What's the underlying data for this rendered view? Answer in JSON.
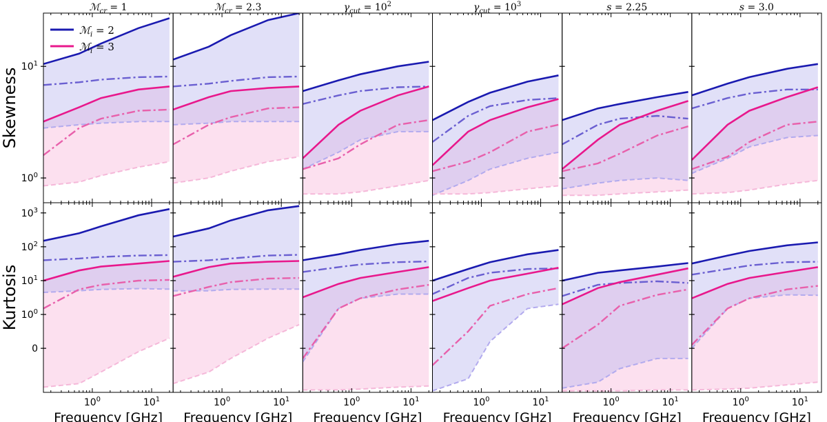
{
  "chart_data": {
    "type": "line",
    "layout": "2 rows x 6 columns of panels, shared axes",
    "xlabel": "Frequency [GHz]",
    "x_scale": "log",
    "xlim": [
      0.15,
      23
    ],
    "x_ticks": [
      {
        "value": 1,
        "label": "10^0"
      },
      {
        "value": 10,
        "label": "10^1"
      }
    ],
    "x": [
      0.15,
      0.6,
      1.4,
      6.0,
      20.0
    ],
    "rows": [
      {
        "name": "skewness",
        "ylabel": "Skewness",
        "y_scale": "log",
        "ylim": [
          0.6,
          30
        ],
        "y_ticks": [
          {
            "value": 1,
            "label": "10^0"
          },
          {
            "value": 10,
            "label": "10^1"
          }
        ]
      },
      {
        "name": "kurtosis",
        "ylabel": "Kurtosis",
        "y_scale": "symlog",
        "ylim": [
          -2,
          2000
        ],
        "y_ticks": [
          {
            "value": 0,
            "label": "0"
          },
          {
            "value": 1,
            "label": "10^0"
          },
          {
            "value": 10,
            "label": "10^1"
          },
          {
            "value": 100,
            "label": "10^2"
          },
          {
            "value": 1000,
            "label": "10^3"
          }
        ]
      }
    ],
    "columns": [
      {
        "sym": "ℳ",
        "sub": "cr",
        "sup": "",
        "value": "1"
      },
      {
        "sym": "ℳ",
        "sub": "cr",
        "sup": "",
        "value": "2.3"
      },
      {
        "sym": "γ",
        "sub": "cut",
        "sup": "2",
        "value": "10"
      },
      {
        "sym": "γ",
        "sub": "cut",
        "sup": "3",
        "value": "10"
      },
      {
        "sym": "s",
        "sub": "",
        "sup": "",
        "value": "2.25"
      },
      {
        "sym": "s",
        "sub": "",
        "sup": "",
        "value": "3.0"
      }
    ],
    "legend": {
      "location": "upper-left of first panel",
      "entries": [
        {
          "sym": "ℳ",
          "sub": "i",
          "value": "2",
          "color": "#1a1ab0"
        },
        {
          "sym": "ℳ",
          "sub": "i",
          "value": "3",
          "color": "#e8188c"
        }
      ]
    },
    "styles": {
      "blue_solid": "#1a1ab0",
      "blue_dashdot": "#6a5fd1",
      "blue_dashed": "#b2aaee",
      "blue_fill": "#e2e1f7",
      "pink_solid": "#e8188c",
      "pink_dashdot": "#e860ab",
      "pink_dashed": "#f5b8d9",
      "pink_fill": "#fce1ef",
      "overlap_fill": "#e6d5f0"
    },
    "series_note": "Each group: upper (solid), median (dash-dot), lower (dashed); shaded band between upper and lower",
    "panels": [
      {
        "row": 0,
        "col": 0,
        "groups": [
          {
            "name": "M_i=2",
            "upper": [
              10.5,
              13,
              16,
              22,
              27
            ],
            "mid": [
              6.8,
              7.2,
              7.6,
              8.0,
              8.1
            ],
            "lower": [
              2.8,
              3.0,
              3.1,
              3.2,
              3.2
            ]
          },
          {
            "name": "M_i=3",
            "upper": [
              3.2,
              4.3,
              5.2,
              6.2,
              6.6
            ],
            "mid": [
              1.6,
              2.8,
              3.4,
              4.0,
              4.1
            ],
            "lower": [
              0.85,
              0.92,
              1.05,
              1.25,
              1.4
            ]
          }
        ]
      },
      {
        "row": 0,
        "col": 1,
        "groups": [
          {
            "name": "M_i=2",
            "upper": [
              11.5,
              15,
              19,
              26,
              30
            ],
            "mid": [
              6.6,
              7.0,
              7.4,
              8.0,
              8.1
            ],
            "lower": [
              3.0,
              3.1,
              3.2,
              3.2,
              3.2
            ]
          },
          {
            "name": "M_i=3",
            "upper": [
              4.1,
              5.3,
              6.0,
              6.4,
              6.6
            ],
            "mid": [
              2.0,
              3.0,
              3.5,
              4.2,
              4.3
            ],
            "lower": [
              0.9,
              1.0,
              1.15,
              1.4,
              1.55
            ]
          }
        ]
      },
      {
        "row": 0,
        "col": 2,
        "groups": [
          {
            "name": "M_i=2",
            "upper": [
              6.0,
              7.5,
              8.5,
              10,
              11
            ],
            "mid": [
              4.6,
              5.5,
              6.0,
              6.5,
              6.6
            ],
            "lower": [
              1.2,
              1.7,
              2.2,
              2.6,
              2.6
            ]
          },
          {
            "name": "M_i=3",
            "upper": [
              1.5,
              3.0,
              4.0,
              5.5,
              6.6
            ],
            "mid": [
              1.2,
              1.5,
              2.0,
              3.0,
              3.3
            ],
            "lower": [
              0.72,
              0.72,
              0.75,
              0.85,
              0.95
            ]
          }
        ]
      },
      {
        "row": 0,
        "col": 3,
        "groups": [
          {
            "name": "M_i=2",
            "upper": [
              3.3,
              4.8,
              5.8,
              7.3,
              8.3
            ],
            "mid": [
              2.1,
              3.6,
              4.4,
              5.0,
              5.2
            ],
            "lower": [
              0.7,
              0.95,
              1.2,
              1.5,
              1.7
            ]
          },
          {
            "name": "M_i=3",
            "upper": [
              1.3,
              2.6,
              3.3,
              4.3,
              5.1
            ],
            "mid": [
              1.15,
              1.4,
              1.7,
              2.6,
              3.0
            ],
            "lower": [
              0.72,
              0.72,
              0.74,
              0.8,
              0.85
            ]
          }
        ]
      },
      {
        "row": 0,
        "col": 4,
        "groups": [
          {
            "name": "M_i=2",
            "upper": [
              3.3,
              4.2,
              4.6,
              5.3,
              5.9
            ],
            "mid": [
              2.0,
              3.0,
              3.4,
              3.6,
              3.4
            ],
            "lower": [
              0.8,
              0.9,
              0.95,
              1.0,
              0.95
            ]
          },
          {
            "name": "M_i=3",
            "upper": [
              1.2,
              2.2,
              3.0,
              4.0,
              4.9
            ],
            "mid": [
              1.15,
              1.35,
              1.65,
              2.4,
              2.9
            ],
            "lower": [
              0.7,
              0.7,
              0.72,
              0.75,
              0.78
            ]
          }
        ]
      },
      {
        "row": 0,
        "col": 5,
        "groups": [
          {
            "name": "M_i=2",
            "upper": [
              5.5,
              7.0,
              8.0,
              9.5,
              10.5
            ],
            "mid": [
              4.2,
              5.2,
              5.7,
              6.2,
              6.2
            ],
            "lower": [
              1.1,
              1.5,
              1.9,
              2.3,
              2.4
            ]
          },
          {
            "name": "M_i=3",
            "upper": [
              1.45,
              3.0,
              4.0,
              5.3,
              6.5
            ],
            "mid": [
              1.2,
              1.55,
              2.1,
              3.0,
              3.2
            ],
            "lower": [
              0.72,
              0.74,
              0.78,
              0.88,
              0.95
            ]
          }
        ]
      },
      {
        "row": 1,
        "col": 0,
        "groups": [
          {
            "name": "M_i=2",
            "upper": [
              150,
              250,
              400,
              850,
              1300
            ],
            "mid": [
              40,
              45,
              50,
              55,
              57
            ],
            "lower": [
              4.5,
              5,
              5.5,
              5.8,
              5.6
            ]
          },
          {
            "name": "M_i=3",
            "upper": [
              10,
              20,
              26,
              32,
              38
            ],
            "mid": [
              1.5,
              5.5,
              7.5,
              10,
              10.5
            ],
            "lower": [
              -1.4,
              -1.1,
              -0.7,
              -0.1,
              0.3
            ]
          }
        ]
      },
      {
        "row": 1,
        "col": 1,
        "groups": [
          {
            "name": "M_i=2",
            "upper": [
              200,
              350,
              600,
              1200,
              1600
            ],
            "mid": [
              36,
              40,
              45,
              55,
              58
            ],
            "lower": [
              5,
              5,
              5.5,
              5.6,
              5.6
            ]
          },
          {
            "name": "M_i=3",
            "upper": [
              13,
              25,
              32,
              36,
              38
            ],
            "mid": [
              3.5,
              6.5,
              9,
              11.5,
              12
            ],
            "lower": [
              -1.1,
              -0.7,
              -0.3,
              0.3,
              0.7
            ]
          }
        ]
      },
      {
        "row": 1,
        "col": 2,
        "groups": [
          {
            "name": "M_i=2",
            "upper": [
              40,
              60,
              80,
              120,
              150
            ],
            "mid": [
              18,
              25,
              30,
              35,
              37
            ],
            "lower": [
              -0.4,
              1.5,
              3,
              4,
              4
            ]
          },
          {
            "name": "M_i=3",
            "upper": [
              3.2,
              8,
              12,
              18,
              25
            ],
            "mid": [
              -0.3,
              1.5,
              3,
              5.5,
              7.5
            ],
            "lower": [
              -1.7,
              -1.7,
              -1.6,
              -1.4,
              -1.3
            ]
          }
        ]
      },
      {
        "row": 1,
        "col": 3,
        "groups": [
          {
            "name": "M_i=2",
            "upper": [
              10,
              22,
              35,
              60,
              80
            ],
            "mid": [
              4,
              12,
              17,
              22,
              23
            ],
            "lower": [
              -1.8,
              -0.9,
              0.2,
              1.5,
              2
            ]
          },
          {
            "name": "M_i=3",
            "upper": [
              2.5,
              6,
              10,
              16,
              24
            ],
            "mid": [
              -0.5,
              0.5,
              1.8,
              4,
              6
            ]
          }
        ]
      },
      {
        "row": 1,
        "col": 4,
        "groups": [
          {
            "name": "M_i=2",
            "upper": [
              10,
              17,
              20,
              26,
              33
            ],
            "mid": [
              3.5,
              7.5,
              8.5,
              9.5,
              8.5
            ],
            "lower": [
              -1.5,
              -1.0,
              -0.6,
              -0.3,
              -0.3
            ]
          },
          {
            "name": "M_i=3",
            "upper": [
              2.0,
              6,
              9,
              15,
              23
            ],
            "mid": [
              0,
              0.7,
              1.8,
              3.8,
              5.5
            ],
            "lower": [
              -1.8,
              -1.8,
              -1.8,
              -1.7,
              -1.7
            ]
          }
        ]
      },
      {
        "row": 1,
        "col": 5,
        "groups": [
          {
            "name": "M_i=2",
            "upper": [
              32,
              55,
              75,
              110,
              135
            ],
            "mid": [
              15,
              22,
              28,
              35,
              36
            ],
            "lower": [
              0,
              1.5,
              3,
              3.8,
              3.7
            ]
          },
          {
            "name": "M_i=3",
            "upper": [
              3,
              8,
              12,
              18,
              25
            ],
            "mid": [
              0.1,
              1.5,
              3,
              5.5,
              7
            ],
            "lower": [
              -1.7,
              -1.6,
              -1.5,
              -1.2,
              -1.0
            ]
          }
        ]
      }
    ]
  }
}
